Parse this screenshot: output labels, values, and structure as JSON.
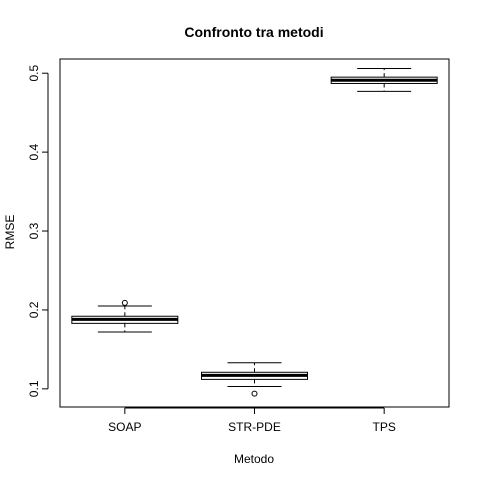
{
  "chart_data": {
    "type": "boxplot",
    "title": "Confronto tra metodi",
    "xlabel": "Metodo",
    "ylabel": "RMSE",
    "ylim": [
      0.077,
      0.518
    ],
    "y_ticks": [
      "0.1",
      "0.2",
      "0.3",
      "0.4",
      "0.5"
    ],
    "grid": false,
    "categories": [
      "SOAP",
      "STR-PDE",
      "TPS"
    ],
    "boxes": [
      {
        "category": "SOAP",
        "whisker_low": 0.172,
        "q1": 0.183,
        "median": 0.188,
        "q3": 0.192,
        "whisker_high": 0.205,
        "outliers": [
          0.209
        ]
      },
      {
        "category": "STR-PDE",
        "whisker_low": 0.103,
        "q1": 0.112,
        "median": 0.117,
        "q3": 0.121,
        "whisker_high": 0.133,
        "outliers": [
          0.094
        ]
      },
      {
        "category": "TPS",
        "whisker_low": 0.477,
        "q1": 0.487,
        "median": 0.491,
        "q3": 0.495,
        "whisker_high": 0.506,
        "outliers": []
      }
    ]
  }
}
